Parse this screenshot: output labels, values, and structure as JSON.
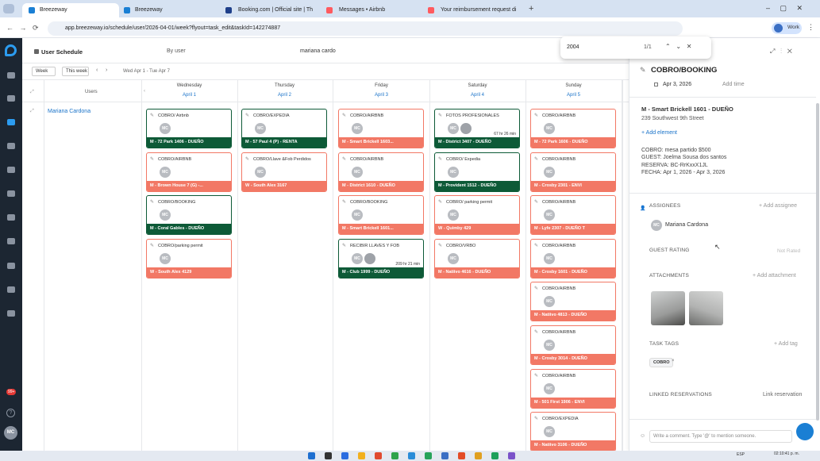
{
  "browser": {
    "tabs": [
      "Breezeway",
      "Breezeway",
      "Booking.com | Official site | Th",
      "Messages • Airbnb",
      "Your reimbursement request di"
    ],
    "url": "app.breezeway.io/schedule/user/2026-04-01/week?flyout=task_edit&taskId=142274887",
    "profile": "Work",
    "find_query": "2004",
    "find_count": "1/1"
  },
  "sidebar": {
    "badge": "99+",
    "avatar": "MC"
  },
  "header": {
    "title": "User Schedule",
    "group_by": "By user",
    "search": "mariana cardo"
  },
  "controls": {
    "view": "Week",
    "today": "This week",
    "range": "Wed Apr 1 - Tue Apr 7"
  },
  "schedule": {
    "users_header": "Users",
    "user": "Mariana Cardona",
    "days": [
      {
        "name": "Wednesday",
        "date": "April 1",
        "tasks": [
          {
            "title": "COBRO/ Airbnb",
            "avatar": "MC",
            "property": "M - 72 Park 1406 - DUEÑO",
            "color": "#0d5a37"
          },
          {
            "title": "COBRO/AIRBNB",
            "avatar": "MC",
            "property": "M - Brown House 7 (G) -...",
            "color": "#f27865"
          },
          {
            "title": "COBRO/BOOKING",
            "avatar": "MC",
            "property": "M - Coral Gables - DUEÑO",
            "color": "#0d5a37"
          },
          {
            "title": "COBRO/parking permit",
            "avatar": "MC",
            "property": "W - South Alex 4129",
            "color": "#f27865"
          }
        ]
      },
      {
        "name": "Thursday",
        "date": "April 2",
        "tasks": [
          {
            "title": "COBRO/EXPEDIA",
            "avatar": "MC",
            "property": "M - 57 Paul 4 (P) - RENTA",
            "color": "#0d5a37"
          },
          {
            "title": "COBRO/Llave &Fob Perdidos",
            "avatar": "MC",
            "property": "W - South Alex 3167",
            "color": "#f27865"
          }
        ]
      },
      {
        "name": "Friday",
        "date": "April 3",
        "tasks": [
          {
            "title": "COBRO/AIRBNB",
            "avatar": "MC",
            "property": "M - Smart Brickell 1603...",
            "color": "#f27865"
          },
          {
            "title": "COBRO/AIRBNB",
            "avatar": "MC",
            "property": "M - District 1610 - DUEÑO",
            "color": "#f27865"
          },
          {
            "title": "COBRO/BOOKING",
            "avatar": "MC",
            "property": "M - Smart Brickell 1601...",
            "color": "#f27865"
          },
          {
            "title": "RECIBIR LLAVES Y FOB",
            "avatar": "MC",
            "property": "M - Club 1999 - DUEÑO",
            "color": "#0d5a37",
            "duration": "209 hr 21 min"
          }
        ]
      },
      {
        "name": "Saturday",
        "date": "April 4",
        "tasks": [
          {
            "title": "FOTOS PROFESIONALES",
            "avatar": "MC",
            "property": "M - District 3407 - DUEÑO",
            "color": "#0d5a37",
            "duration": "67 hr 26 min"
          },
          {
            "title": "COBRO/ Expedia",
            "avatar": "MC",
            "property": "M - Provident 1512 - DUEÑO",
            "color": "#0d5a37"
          },
          {
            "title": "COBRO/ parking permit",
            "avatar": "MC",
            "property": "W - Quimby 429",
            "color": "#f27865"
          },
          {
            "title": "COBRO/VRBO",
            "avatar": "MC",
            "property": "M - Natiivo 4616 - DUEÑO",
            "color": "#f27865"
          }
        ]
      },
      {
        "name": "Sunday",
        "date": "April 5",
        "tasks": [
          {
            "title": "COBRO/AIRBNB",
            "avatar": "MC",
            "property": "M - 72 Park 1606 - DUEÑO",
            "color": "#f27865"
          },
          {
            "title": "COBRO/AIRBNB",
            "avatar": "MC",
            "property": "M - Crosby 2301 - ENVI",
            "color": "#f27865"
          },
          {
            "title": "COBRO/AIRBNB",
            "avatar": "MC",
            "property": "M - Lyfe 2307 - DUEÑO T",
            "color": "#f27865"
          },
          {
            "title": "COBRO/AIRBNB",
            "avatar": "MC",
            "property": "M - Crosby 1601 - DUEÑO",
            "color": "#f27865"
          },
          {
            "title": "COBRO/AIRBNB",
            "avatar": "MC",
            "property": "M - Natiivo 4813 - DUEÑO",
            "color": "#f27865"
          },
          {
            "title": "COBRO/AIRBNB",
            "avatar": "MC",
            "property": "M - Crosby 3014 - DUEÑO",
            "color": "#f27865"
          },
          {
            "title": "COBRO/AIRBNB",
            "avatar": "MC",
            "property": "M - 501 First 1906 - ENVI",
            "color": "#f27865"
          },
          {
            "title": "COBRO/EXPEDIA",
            "avatar": "MC",
            "property": "M - Natiivo 3106 - DUEÑO",
            "color": "#f27865"
          }
        ]
      }
    ]
  },
  "panel": {
    "title": "COBRO/BOOKING",
    "date": "Apr 3, 2026",
    "add_time": "Add time",
    "property": "M - Smart Brickell 1601 - DUEÑO",
    "address": "239 Southwest 9th Street",
    "add_element": "+ Add element",
    "description": [
      "COBRO: mesa partido $500",
      "GUEST: Joelma Sousa dos santos",
      "RESERVA: BC-RrKxxX1JL",
      "FECHA: Apr 1, 2026 - Apr 3, 2026"
    ],
    "assignees_label": "ASSIGNEES",
    "add_assignee": "+ Add assignee",
    "assignee_avatar": "MC",
    "assignee": "Mariana Cardona",
    "rating_label": "GUEST RATING",
    "rating": "Not Rated",
    "attachments_label": "ATTACHMENTS",
    "add_attachment": "+ Add attachment",
    "tags_label": "TASK TAGS",
    "add_tag": "+ Add tag",
    "tag": "COBRO",
    "reservations_label": "LINKED RESERVATIONS",
    "link_reservation": "Link reservation",
    "comment_placeholder": "Write a comment. Type '@' to mention someone."
  },
  "taskbar": {
    "language": "ESP",
    "time": "02:10:41 p. m."
  }
}
